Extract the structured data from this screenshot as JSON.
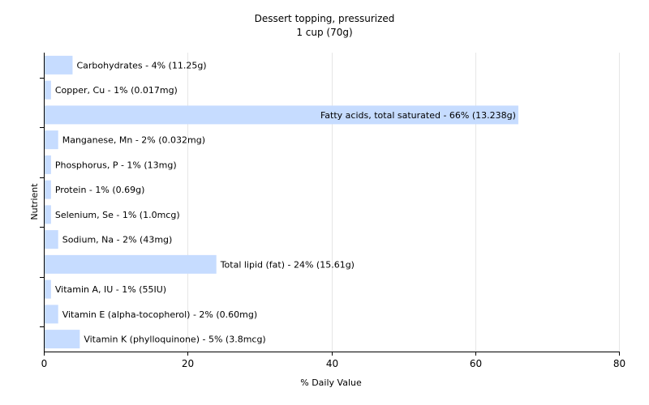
{
  "chart_data": {
    "type": "bar",
    "orientation": "horizontal",
    "title": "Dessert topping, pressurized",
    "subtitle": "1 cup (70g)",
    "xlabel": "% Daily Value",
    "ylabel": "Nutrient",
    "xlim": [
      0,
      80
    ],
    "xticks": [
      0,
      20,
      40,
      60,
      80
    ],
    "grid": true,
    "bar_color": "#c6dcff",
    "categories": [
      "Carbohydrates",
      "Copper, Cu",
      "Fatty acids, total saturated",
      "Manganese, Mn",
      "Phosphorus, P",
      "Protein",
      "Selenium, Se",
      "Sodium, Na",
      "Total lipid (fat)",
      "Vitamin A, IU",
      "Vitamin E (alpha-tocopherol)",
      "Vitamin K (phylloquinone)"
    ],
    "values": [
      4,
      1,
      66,
      2,
      1,
      1,
      1,
      2,
      24,
      1,
      2,
      5
    ],
    "labels": [
      "Carbohydrates - 4% (11.25g)",
      "Copper, Cu - 1% (0.017mg)",
      "Fatty acids, total saturated - 66% (13.238g)",
      "Manganese, Mn - 2% (0.032mg)",
      "Phosphorus, P - 1% (13mg)",
      "Protein - 1% (0.69g)",
      "Selenium, Se - 1% (1.0mcg)",
      "Sodium, Na - 2% (43mg)",
      "Total lipid (fat) - 24% (15.61g)",
      "Vitamin A, IU - 1% (55IU)",
      "Vitamin E (alpha-tocopherol) - 2% (0.60mg)",
      "Vitamin K (phylloquinone) - 5% (3.8mcg)"
    ]
  }
}
